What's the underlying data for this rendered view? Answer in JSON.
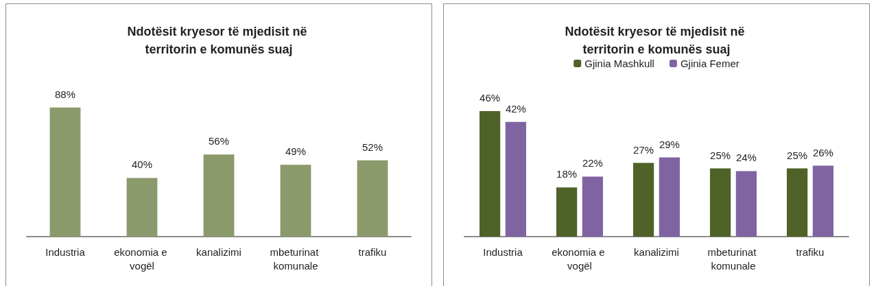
{
  "chart_data": [
    {
      "type": "bar",
      "title": "Ndotësit kryesor të mjedisit në territorin e komunës suaj",
      "categories": [
        "Industria",
        "ekonomia e vogël",
        "kanalizimi",
        "mbeturinat komunale",
        "trafiku"
      ],
      "series": [
        {
          "color": "#8a9a6b",
          "values": [
            88,
            40,
            56,
            49,
            52
          ],
          "value_labels": [
            "88%",
            "40%",
            "56%",
            "49%",
            "52%"
          ]
        }
      ],
      "tick_labels": "x",
      "grid": false,
      "legend": false
    },
    {
      "type": "bar",
      "title": "Ndotësit kryesor të mjedisit në territorin e komunës suaj",
      "categories": [
        "Industria",
        "ekonomia e vogël",
        "kanalizimi",
        "mbeturinat komunale",
        "trafiku"
      ],
      "series": [
        {
          "name": "Gjinia Mashkull",
          "color": "#4f6228",
          "values": [
            46,
            18,
            27,
            25,
            25
          ],
          "value_labels": [
            "46%",
            "18%",
            "27%",
            "25%",
            "25%"
          ]
        },
        {
          "name": "Gjinia Femer",
          "color": "#8064a2",
          "values": [
            42,
            22,
            29,
            24,
            26
          ],
          "value_labels": [
            "42%",
            "22%",
            "29%",
            "24%",
            "26%"
          ]
        }
      ],
      "tick_labels": "x",
      "grid": false,
      "legend": "top"
    }
  ]
}
